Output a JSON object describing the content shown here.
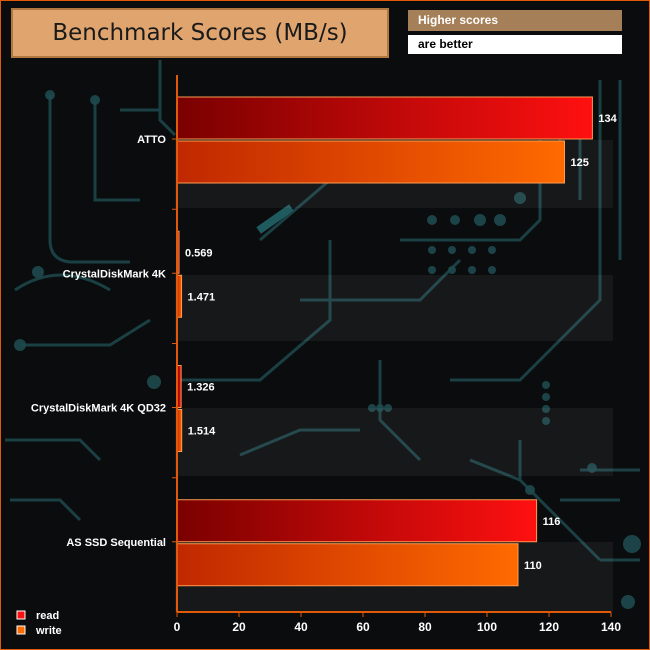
{
  "header": {
    "title": "Benchmark Scores (MB/s)",
    "note_line1": "Higher scores",
    "note_line2": "are better"
  },
  "colors": {
    "read_dark": "#7a0000",
    "read_light": "#ff1010",
    "write_dark": "#c02800",
    "write_light": "#ff6a00",
    "axis": "#e05a0a"
  },
  "chart_data": {
    "type": "bar",
    "orientation": "horizontal",
    "title": "Benchmark Scores (MB/s)",
    "categories": [
      "ATTO",
      "CrystalDiskMark 4K",
      "CrystalDiskMark 4K QD32",
      "AS SSD Sequential"
    ],
    "series": [
      {
        "name": "read",
        "values": [
          134,
          0.569,
          1.326,
          116
        ],
        "labels": [
          "134",
          "0.569",
          "1.326",
          "116"
        ]
      },
      {
        "name": "write",
        "values": [
          125,
          1.471,
          1.514,
          110
        ],
        "labels": [
          "125",
          "1.471",
          "1.514",
          "110"
        ]
      }
    ],
    "xlim": [
      0,
      140
    ],
    "xticks": [
      0,
      20,
      40,
      60,
      80,
      100,
      120,
      140
    ],
    "xlabel": "",
    "ylabel": "",
    "legend": {
      "position": "bottom-left",
      "entries": [
        "read",
        "write"
      ]
    },
    "grid": false
  }
}
